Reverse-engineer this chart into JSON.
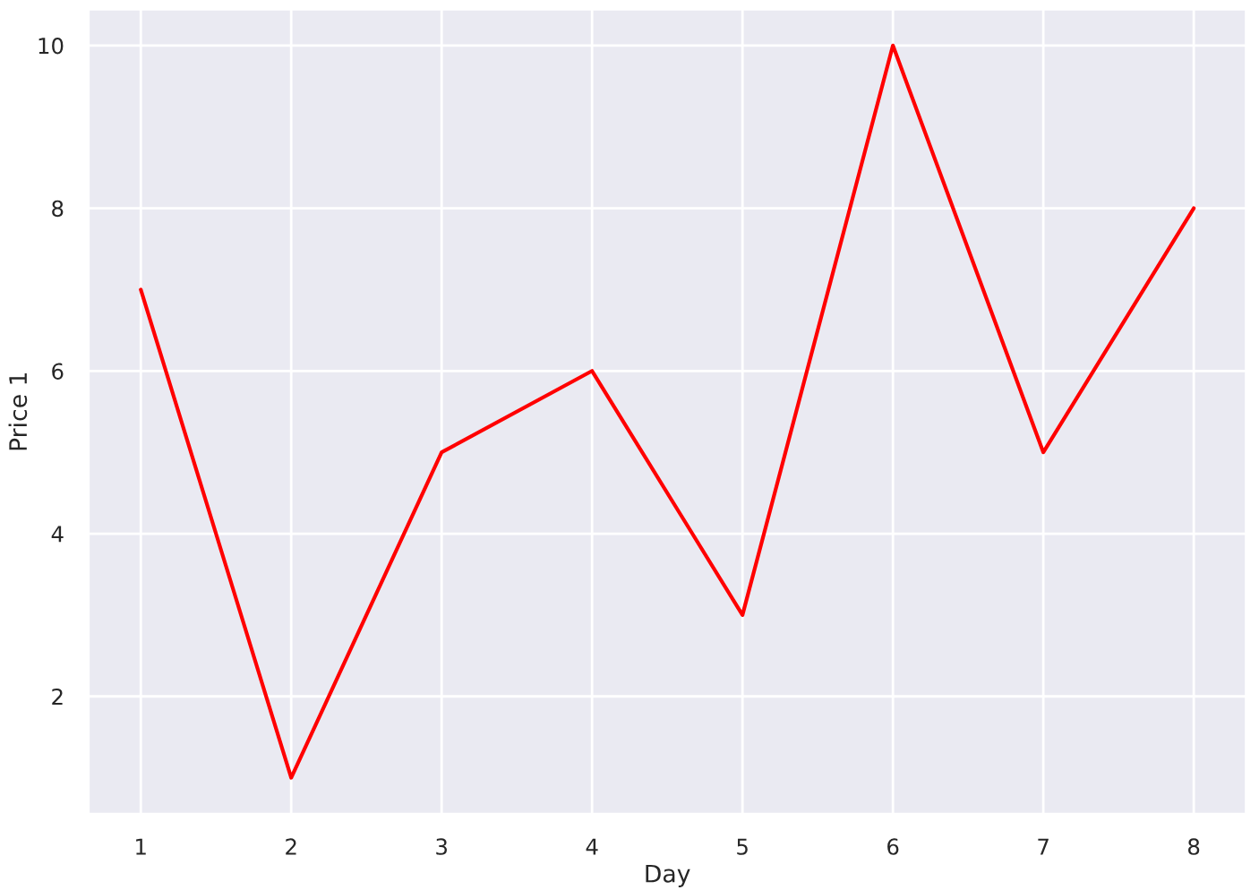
{
  "chart_data": {
    "type": "line",
    "xlabel": "Day",
    "ylabel": "Price 1",
    "x": [
      1,
      2,
      3,
      4,
      5,
      6,
      7,
      8
    ],
    "series": [
      {
        "color": "#ff0000",
        "values": [
          7,
          1,
          5,
          6,
          3,
          10,
          5,
          8
        ]
      }
    ],
    "xlim": [
      0.65,
      8.35
    ],
    "ylim": [
      0.55,
      10.45
    ],
    "xticks": [
      1,
      2,
      3,
      4,
      5,
      6,
      7,
      8
    ],
    "yticks": [
      2,
      4,
      6,
      8,
      10
    ],
    "grid": true,
    "legend": false
  }
}
